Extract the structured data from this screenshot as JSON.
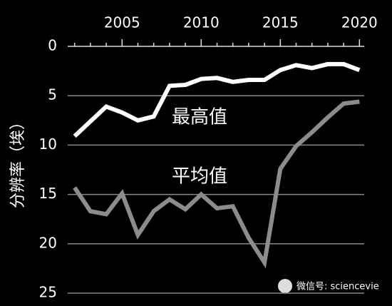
{
  "chart_data": {
    "type": "line",
    "x": [
      2002,
      2003,
      2004,
      2005,
      2006,
      2007,
      2008,
      2009,
      2010,
      2011,
      2012,
      2013,
      2014,
      2015,
      2016,
      2017,
      2018,
      2019,
      2020
    ],
    "series": [
      {
        "name": "最高值",
        "color": "#ffffff",
        "values": [
          9.1,
          7.6,
          6.1,
          6.7,
          7.5,
          7.1,
          4.0,
          3.9,
          3.3,
          3.2,
          3.6,
          3.4,
          3.4,
          2.4,
          1.9,
          2.2,
          1.8,
          1.8,
          2.4
        ]
      },
      {
        "name": "平均值",
        "color": "#8c8c8c",
        "values": [
          14.3,
          16.7,
          17.0,
          14.9,
          19.1,
          16.7,
          15.5,
          16.5,
          15.0,
          16.4,
          16.2,
          19.4,
          21.9,
          12.4,
          10.1,
          8.7,
          7.2,
          5.8,
          5.6
        ]
      }
    ],
    "ylabel": "分辨率（埃）",
    "xlim": [
      2001.7,
      2020.3
    ],
    "xticks": [
      2005,
      2010,
      2015,
      2020
    ],
    "xminorticks": [
      2002,
      2003,
      2004,
      2005,
      2006,
      2007,
      2008,
      2009,
      2010,
      2011,
      2012,
      2013,
      2014,
      2015,
      2016,
      2017,
      2018,
      2019,
      2020
    ],
    "ylim": [
      0,
      25
    ],
    "yticks": [
      0,
      5,
      10,
      15,
      20,
      25
    ],
    "y_inverted": true,
    "grid": true,
    "watermark": "微信号: sciencevie"
  }
}
